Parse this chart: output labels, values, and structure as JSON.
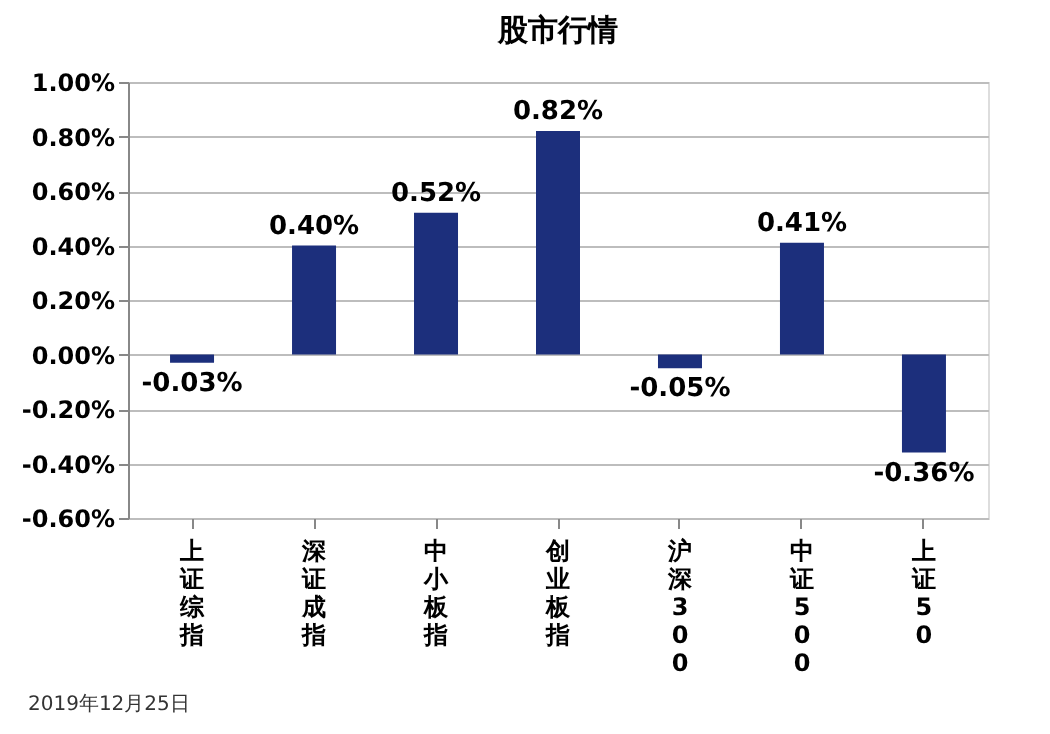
{
  "chart_data": {
    "type": "bar",
    "title": "股市行情",
    "categories": [
      "上证综指",
      "深证成指",
      "中小板指",
      "创业板指",
      "沪深300",
      "中证500",
      "上证50"
    ],
    "values": [
      -0.03,
      0.4,
      0.52,
      0.82,
      -0.05,
      0.41,
      -0.36
    ],
    "color": "#1c2f7c",
    "value_labels": [
      "-0.03%",
      "0.40%",
      "0.52%",
      "0.82%",
      "-0.05%",
      "0.41%",
      "-0.36%"
    ],
    "ylim": [
      -0.6,
      1.0
    ],
    "yticks": [
      {
        "value": -0.6,
        "label": "-0.60%"
      },
      {
        "value": -0.4,
        "label": "-0.40%"
      },
      {
        "value": -0.2,
        "label": "-0.20%"
      },
      {
        "value": 0,
        "label": "0.00%"
      },
      {
        "value": 0.2,
        "label": "0.20%"
      },
      {
        "value": 0.4,
        "label": "0.40%"
      },
      {
        "value": 0.6,
        "label": "0.60%"
      },
      {
        "value": 0.8,
        "label": "0.80%"
      },
      {
        "value": 1.0,
        "label": "1.00%"
      }
    ],
    "grid": "y",
    "annotations": [
      "2019年12月25日"
    ]
  }
}
